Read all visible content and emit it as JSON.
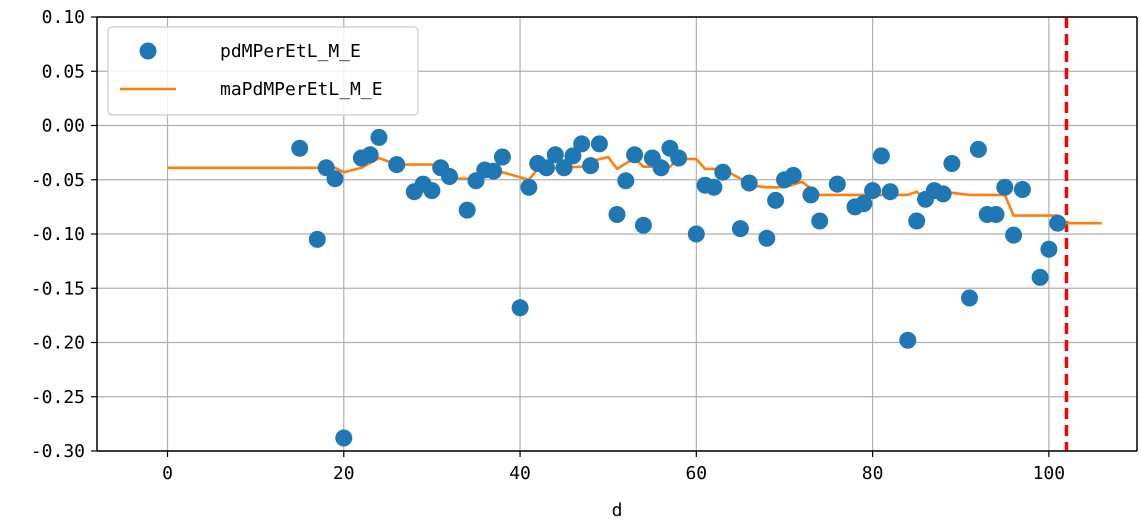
{
  "chart_data": {
    "type": "scatter",
    "xlabel": "d",
    "ylabel": "",
    "xlim": [
      -8,
      110
    ],
    "ylim": [
      -0.3,
      0.1
    ],
    "xticks": [
      0,
      20,
      40,
      60,
      80,
      100
    ],
    "xtick_labels": [
      "0",
      "20",
      "40",
      "60",
      "80",
      "100"
    ],
    "yticks": [
      0.1,
      0.05,
      0.0,
      -0.05,
      -0.1,
      -0.15,
      -0.2,
      -0.25,
      -0.3
    ],
    "ytick_labels": [
      "0.10",
      "0.05",
      "0.00",
      "-0.05",
      "-0.10",
      "-0.15",
      "-0.20",
      "-0.25",
      "-0.30"
    ],
    "grid": true,
    "legend_position": "top-left",
    "vline": {
      "x": 102,
      "color": "#ff0000",
      "style": "dashed"
    },
    "series": [
      {
        "name": "pdMPerEtL_M_E",
        "kind": "scatter",
        "color": "#1f77b4",
        "points": [
          [
            15,
            -0.021
          ],
          [
            17,
            -0.105
          ],
          [
            18,
            -0.039
          ],
          [
            19,
            -0.049
          ],
          [
            20,
            -0.288
          ],
          [
            22,
            -0.03
          ],
          [
            23,
            -0.027
          ],
          [
            24,
            -0.011
          ],
          [
            26,
            -0.036
          ],
          [
            28,
            -0.061
          ],
          [
            29,
            -0.054
          ],
          [
            30,
            -0.06
          ],
          [
            31,
            -0.039
          ],
          [
            32,
            -0.047
          ],
          [
            34,
            -0.078
          ],
          [
            35,
            -0.051
          ],
          [
            36,
            -0.041
          ],
          [
            37,
            -0.042
          ],
          [
            38,
            -0.029
          ],
          [
            40,
            -0.168
          ],
          [
            41,
            -0.057
          ],
          [
            42,
            -0.035
          ],
          [
            43,
            -0.039
          ],
          [
            44,
            -0.027
          ],
          [
            45,
            -0.039
          ],
          [
            46,
            -0.028
          ],
          [
            47,
            -0.017
          ],
          [
            48,
            -0.037
          ],
          [
            49,
            -0.017
          ],
          [
            51,
            -0.082
          ],
          [
            52,
            -0.051
          ],
          [
            53,
            -0.027
          ],
          [
            54,
            -0.092
          ],
          [
            55,
            -0.03
          ],
          [
            56,
            -0.039
          ],
          [
            57,
            -0.021
          ],
          [
            58,
            -0.03
          ],
          [
            60,
            -0.1
          ],
          [
            61,
            -0.055
          ],
          [
            62,
            -0.057
          ],
          [
            63,
            -0.043
          ],
          [
            65,
            -0.095
          ],
          [
            66,
            -0.053
          ],
          [
            68,
            -0.104
          ],
          [
            69,
            -0.069
          ],
          [
            70,
            -0.05
          ],
          [
            71,
            -0.046
          ],
          [
            73,
            -0.064
          ],
          [
            74,
            -0.088
          ],
          [
            76,
            -0.054
          ],
          [
            78,
            -0.075
          ],
          [
            79,
            -0.072
          ],
          [
            80,
            -0.06
          ],
          [
            81,
            -0.028
          ],
          [
            82,
            -0.061
          ],
          [
            84,
            -0.198
          ],
          [
            85,
            -0.088
          ],
          [
            86,
            -0.068
          ],
          [
            87,
            -0.06
          ],
          [
            88,
            -0.063
          ],
          [
            89,
            -0.035
          ],
          [
            91,
            -0.159
          ],
          [
            92,
            -0.022
          ],
          [
            93,
            -0.082
          ],
          [
            94,
            -0.082
          ],
          [
            95,
            -0.057
          ],
          [
            96,
            -0.101
          ],
          [
            97,
            -0.059
          ],
          [
            99,
            -0.14
          ],
          [
            100,
            -0.114
          ],
          [
            101,
            -0.09
          ]
        ]
      },
      {
        "name": "maPdMPerEtL_M_E",
        "kind": "line",
        "color": "#ff7f0e",
        "points": [
          [
            0,
            -0.039
          ],
          [
            19,
            -0.039
          ],
          [
            20,
            -0.043
          ],
          [
            22,
            -0.039
          ],
          [
            24,
            -0.03
          ],
          [
            26,
            -0.036
          ],
          [
            31,
            -0.036
          ],
          [
            33,
            -0.049
          ],
          [
            35,
            -0.049
          ],
          [
            38,
            -0.043
          ],
          [
            41,
            -0.05
          ],
          [
            42,
            -0.04
          ],
          [
            47,
            -0.038
          ],
          [
            48,
            -0.033
          ],
          [
            50,
            -0.029
          ],
          [
            51,
            -0.04
          ],
          [
            53,
            -0.03
          ],
          [
            54,
            -0.038
          ],
          [
            57,
            -0.038
          ],
          [
            58,
            -0.031
          ],
          [
            60,
            -0.031
          ],
          [
            61,
            -0.04
          ],
          [
            63,
            -0.04
          ],
          [
            65,
            -0.049
          ],
          [
            66,
            -0.055
          ],
          [
            68,
            -0.057
          ],
          [
            70,
            -0.057
          ],
          [
            72,
            -0.052
          ],
          [
            74,
            -0.064
          ],
          [
            84,
            -0.064
          ],
          [
            85,
            -0.061
          ],
          [
            86,
            -0.069
          ],
          [
            87,
            -0.061
          ],
          [
            89,
            -0.062
          ],
          [
            91,
            -0.064
          ],
          [
            95,
            -0.064
          ],
          [
            96,
            -0.083
          ],
          [
            101,
            -0.083
          ],
          [
            102,
            -0.09
          ],
          [
            106,
            -0.09
          ]
        ]
      }
    ]
  }
}
